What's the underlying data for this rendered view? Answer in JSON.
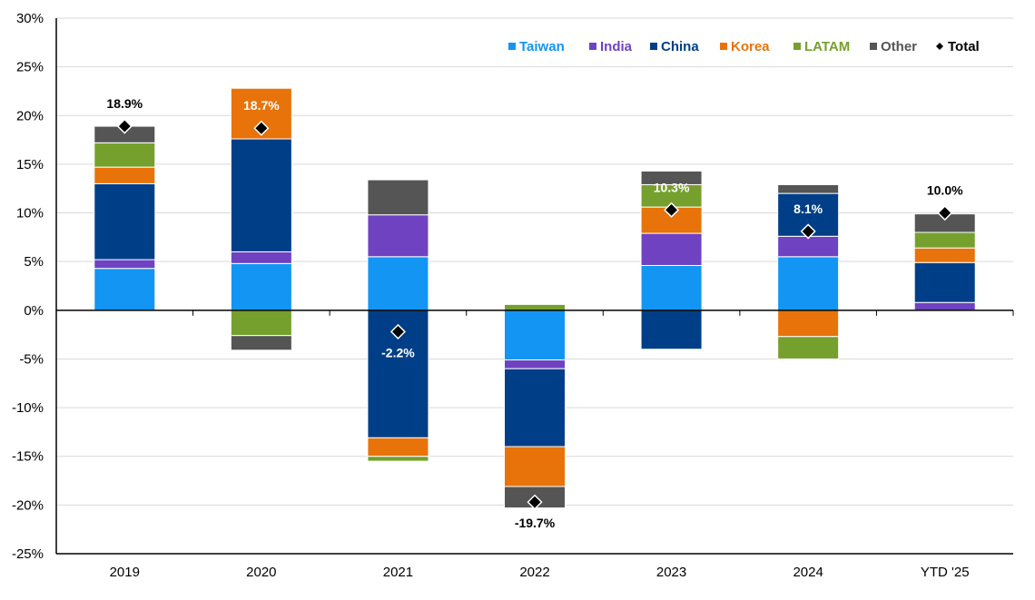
{
  "chart_data": {
    "type": "bar",
    "stacked": true,
    "title": "",
    "xlabel": "",
    "ylabel": "",
    "ylim": [
      -25,
      30
    ],
    "y_tick_step": 5,
    "y_tick_format": "percent",
    "grid": true,
    "legend_position": "top-right",
    "categories": [
      "2019",
      "2020",
      "2021",
      "2022",
      "2023",
      "2024",
      "YTD '25"
    ],
    "series": [
      {
        "name": "Taiwan",
        "color": "#1295f3",
        "values": [
          4.3,
          4.8,
          5.5,
          -5.1,
          4.6,
          5.5,
          0.0
        ]
      },
      {
        "name": "India",
        "color": "#6f42c1",
        "values": [
          0.9,
          1.2,
          4.3,
          -0.9,
          3.3,
          2.1,
          0.8
        ]
      },
      {
        "name": "China",
        "color": "#003f87",
        "values": [
          7.8,
          11.6,
          -13.1,
          -8.0,
          -4.0,
          4.4,
          4.1
        ]
      },
      {
        "name": "Korea",
        "color": "#e8730a",
        "values": [
          1.7,
          5.2,
          -1.9,
          -4.1,
          2.7,
          -2.7,
          1.5
        ]
      },
      {
        "name": "LATAM",
        "color": "#76a02d",
        "values": [
          2.5,
          -2.6,
          -0.5,
          0.6,
          2.3,
          -2.3,
          1.6
        ]
      },
      {
        "name": "Other",
        "color": "#555555",
        "values": [
          1.7,
          -1.5,
          3.6,
          -2.2,
          1.4,
          0.9,
          1.9
        ]
      }
    ],
    "total": {
      "name": "Total",
      "marker": "diamond",
      "color": "#000000",
      "values": [
        18.9,
        18.7,
        -2.2,
        -19.7,
        10.3,
        8.1,
        10.0
      ],
      "labels": [
        "18.9%",
        "18.7%",
        "-2.2%",
        "-19.7%",
        "10.3%",
        "8.1%",
        "10.0%"
      ],
      "label_side": [
        "above",
        "above",
        "below",
        "below",
        "above",
        "above",
        "above"
      ],
      "label_color": [
        "#000000",
        "#ffffff",
        "#ffffff",
        "#000000",
        "#ffffff",
        "#ffffff",
        "#000000"
      ]
    }
  }
}
